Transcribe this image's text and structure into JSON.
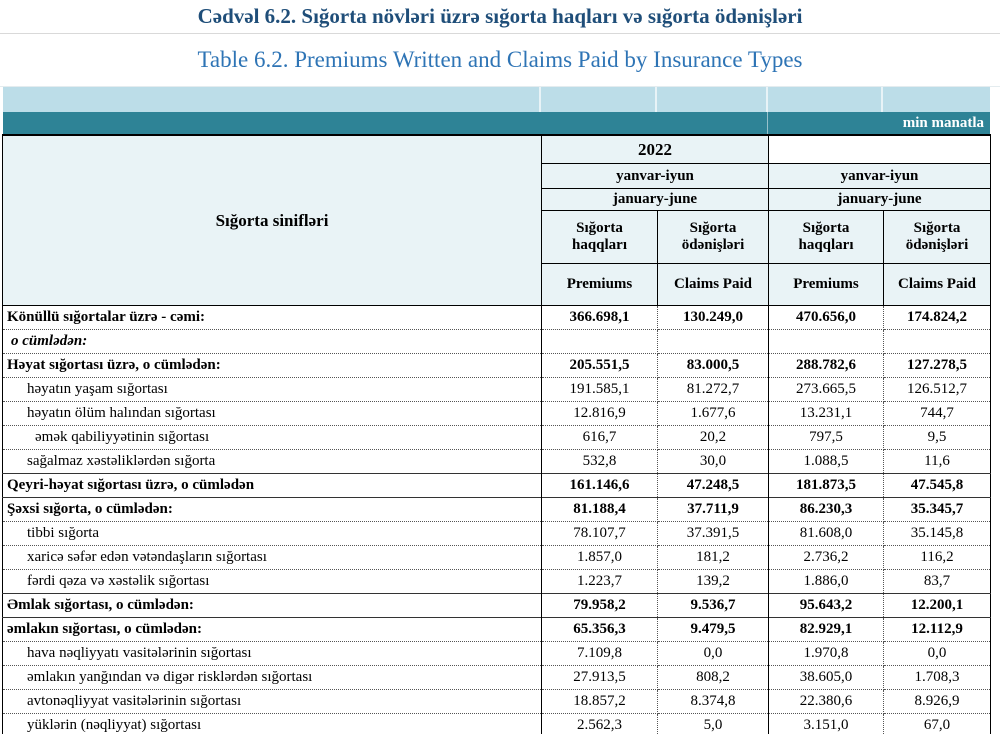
{
  "title": {
    "az": "Cədvəl 6.2. Sığorta növləri üzrə sığorta haqları və sığorta ödənişləri",
    "en": "Table 6.2. Premiums Written and Claims Paid by Insurance Types"
  },
  "unit_label": "min manatla",
  "colors": {
    "title_primary": "#1F4E79",
    "title_secondary": "#2E74B5",
    "light_band": "#BCDDE8",
    "teal_band": "#2E8396",
    "header_bg": "#E9F3F6"
  },
  "table": {
    "row_header": "Sığorta sinifləri",
    "groups": [
      {
        "year": "2022",
        "period_az": "yanvar-iyun",
        "period_en": "january-june"
      },
      {
        "year": "",
        "period_az": "yanvar-iyun",
        "period_en": "january-june"
      }
    ],
    "columns_az": [
      "Sığorta\nhaqqları",
      "Sığorta\nödənişləri",
      "Sığorta\nhaqqları",
      "Sığorta\nödənişləri"
    ],
    "columns_en": [
      "Premiums",
      "Claims Paid",
      "Premiums",
      "Claims Paid"
    ],
    "rows": [
      {
        "label": "Könüllü sığortalar üzrə - cəmi:",
        "style": "bold",
        "indent": 0,
        "values": [
          "366.698,1",
          "130.249,0",
          "470.656,0",
          "174.824,2"
        ]
      },
      {
        "label": "o cümlədən:",
        "style": "bold-italic",
        "indent": 0,
        "values": [
          "",
          "",
          "",
          ""
        ]
      },
      {
        "label": "Həyat sığortası üzrə, o cümlədən:",
        "style": "bold",
        "indent": 0,
        "values": [
          "205.551,5",
          "83.000,5",
          "288.782,6",
          "127.278,5"
        ]
      },
      {
        "label": "həyatın yaşam sığortası",
        "style": "normal",
        "indent": 1,
        "values": [
          "191.585,1",
          "81.272,7",
          "273.665,5",
          "126.512,7"
        ]
      },
      {
        "label": "həyatın ölüm halından sığortası",
        "style": "normal",
        "indent": 1,
        "values": [
          "12.816,9",
          "1.677,6",
          "13.231,1",
          "744,7"
        ]
      },
      {
        "label": "əmək qabiliyyətinin sığortası",
        "style": "normal",
        "indent": 2,
        "values": [
          "616,7",
          "20,2",
          "797,5",
          "9,5"
        ]
      },
      {
        "label": "sağalmaz xəstəliklərdən sığorta",
        "style": "normal",
        "indent": 1,
        "values": [
          "532,8",
          "30,0",
          "1.088,5",
          "11,6"
        ]
      },
      {
        "label": "Qeyri-həyat sığortası üzrə, o cümlədən",
        "style": "bold",
        "indent": 0,
        "solid_top": true,
        "values": [
          "161.146,6",
          "47.248,5",
          "181.873,5",
          "47.545,8"
        ]
      },
      {
        "label": "Şəxsi sığorta,  o cümlədən:",
        "style": "bold",
        "indent": 0,
        "solid_top": true,
        "values": [
          "81.188,4",
          "37.711,9",
          "86.230,3",
          "35.345,7"
        ]
      },
      {
        "label": "tibbi sığorta",
        "style": "normal",
        "indent": 1,
        "values": [
          "78.107,7",
          "37.391,5",
          "81.608,0",
          "35.145,8"
        ]
      },
      {
        "label": "xaricə səfər edən vətəndaşların sığortası",
        "style": "normal",
        "indent": 1,
        "values": [
          "1.857,0",
          "181,2",
          "2.736,2",
          "116,2"
        ]
      },
      {
        "label": "fərdi qəza və xəstəlik sığortası",
        "style": "normal",
        "indent": 1,
        "values": [
          "1.223,7",
          "139,2",
          "1.886,0",
          "83,7"
        ]
      },
      {
        "label": "Əmlak sığortası, o cümlədən:",
        "style": "bold",
        "indent": 0,
        "solid_top": true,
        "values": [
          "79.958,2",
          "9.536,7",
          "95.643,2",
          "12.200,1"
        ]
      },
      {
        "label": "əmlakın sığortası,  o cümlədən:",
        "style": "bold",
        "indent": 0,
        "solid_top": true,
        "values": [
          "65.356,3",
          "9.479,5",
          "82.929,1",
          "12.112,9"
        ]
      },
      {
        "label": "hava nəqliyyatı vasitələrinin sığortası",
        "style": "normal",
        "indent": 1,
        "values": [
          "7.109,8",
          "0,0",
          "1.970,8",
          "0,0"
        ]
      },
      {
        "label": "əmlakın yanğından və digər risklərdən sığortası",
        "style": "normal",
        "indent": 1,
        "values": [
          "27.913,5",
          "808,2",
          "38.605,0",
          "1.708,3"
        ]
      },
      {
        "label": "avtonəqliyyat vasitələrinin sığortası",
        "style": "normal",
        "indent": 1,
        "values": [
          "18.857,2",
          "8.374,8",
          "22.380,6",
          "8.926,9"
        ]
      },
      {
        "label": "yüklərin (nəqliyyat) sığortası",
        "style": "normal",
        "indent": 1,
        "values": [
          "2.562,3",
          "5,0",
          "3.151,0",
          "67,0"
        ]
      }
    ]
  }
}
